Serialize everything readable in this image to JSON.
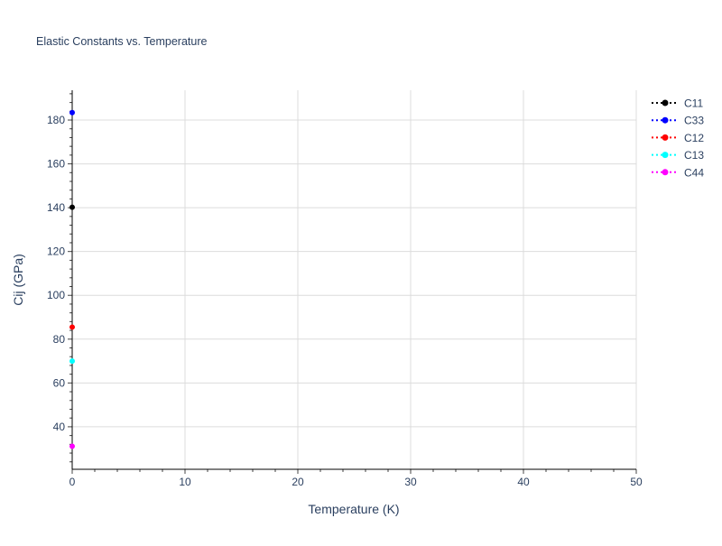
{
  "chart_data": {
    "type": "scatter",
    "title": "Elastic Constants vs. Temperature",
    "xlabel": "Temperature (K)",
    "ylabel": "Cij (GPa)",
    "xlim": [
      0,
      50
    ],
    "ylim": [
      20.6,
      193.6
    ],
    "xticks": [
      0,
      10,
      20,
      30,
      40,
      50
    ],
    "yticks": [
      40,
      60,
      80,
      100,
      120,
      140,
      160,
      180
    ],
    "grid": true,
    "legend_position": "top-right",
    "series": [
      {
        "name": "C11",
        "color": "#000000",
        "x": [
          0
        ],
        "y": [
          140.2
        ]
      },
      {
        "name": "C33",
        "color": "#0000ff",
        "x": [
          0
        ],
        "y": [
          183.4
        ]
      },
      {
        "name": "C12",
        "color": "#ff0000",
        "x": [
          0
        ],
        "y": [
          85.5
        ]
      },
      {
        "name": "C13",
        "color": "#00ffff",
        "x": [
          0
        ],
        "y": [
          70.0
        ]
      },
      {
        "name": "C44",
        "color": "#ff00ff",
        "x": [
          0
        ],
        "y": [
          31.1
        ]
      }
    ]
  }
}
